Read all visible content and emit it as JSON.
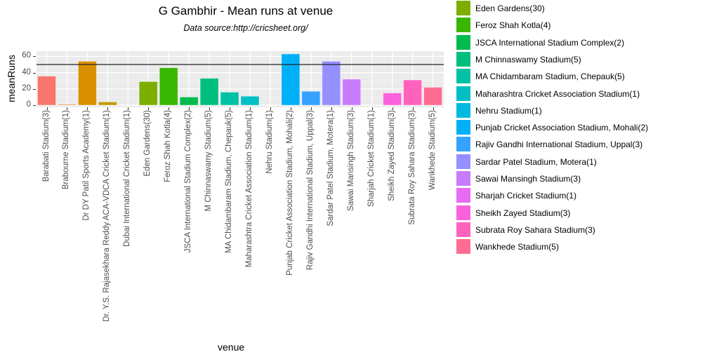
{
  "header": {
    "title": "G Gambhir - Mean runs at venue",
    "subtitle": "Data source:http://cricsheet.org/"
  },
  "axes": {
    "xlabel": "venue",
    "ylabel": "meanRuns",
    "yticks": [
      "0",
      "20",
      "40",
      "60"
    ]
  },
  "chart_data": {
    "type": "bar",
    "title": "G Gambhir - Mean runs at venue",
    "subtitle": "Data source:http://cricsheet.org/",
    "xlabel": "venue",
    "ylabel": "meanRuns",
    "ylim": [
      0,
      64
    ],
    "yticks": [
      0,
      20,
      40,
      60
    ],
    "grid": true,
    "hline": 50,
    "legend_position": "right",
    "categories": [
      "Barabati Stadium(3)",
      "Brabourne Stadium(1)",
      "Dr DY Patil Sports Academy(1)",
      "Dr. Y.S. Rajasekhara Reddy ACA-VDCA Cricket Stadium(1)",
      "Dubai International Cricket Stadium(1)",
      "Eden Gardens(30)",
      "Feroz Shah Kotla(4)",
      "JSCA International Stadium Complex(2)",
      "M Chinnaswamy Stadium(5)",
      "MA Chidambaram Stadium, Chepauk(5)",
      "Maharashtra Cricket Association Stadium(1)",
      "Nehru Stadium(1)",
      "Punjab Cricket Association Stadium, Mohali(2)",
      "Rajiv Gandhi International Stadium, Uppal(3)",
      "Sardar Patel Stadium, Motera(1)",
      "Sawai Mansingh Stadium(3)",
      "Sharjah Cricket Stadium(1)",
      "Sheikh Zayed Stadium(3)",
      "Subrata Roy Sahara Stadium(3)",
      "Wankhede Stadium(5)"
    ],
    "values": [
      35.7,
      1,
      54,
      4,
      0,
      29,
      46,
      10,
      33,
      16,
      11,
      0,
      63,
      17,
      54,
      32,
      0,
      15,
      31,
      22
    ],
    "colors": [
      "#F8766D",
      "#EA8331",
      "#D89000",
      "#C09B00",
      "#A3A500",
      "#7CAE00",
      "#39B600",
      "#00BB4E",
      "#00BF7D",
      "#00C1A3",
      "#00BFC4",
      "#00BAE0",
      "#00B0F6",
      "#35A2FF",
      "#9590FF",
      "#C77CFF",
      "#E76BF3",
      "#FA62DB",
      "#FF62BC",
      "#FF6C91"
    ]
  },
  "legend": {
    "items": [
      {
        "label": "Eden Gardens(30)",
        "color": "#7CAE00"
      },
      {
        "label": "Feroz Shah Kotla(4)",
        "color": "#39B600"
      },
      {
        "label": "JSCA International Stadium Complex(2)",
        "color": "#00BB4E"
      },
      {
        "label": "M Chinnaswamy Stadium(5)",
        "color": "#00BF7D"
      },
      {
        "label": "MA Chidambaram Stadium, Chepauk(5)",
        "color": "#00C1A3"
      },
      {
        "label": "Maharashtra Cricket Association Stadium(1)",
        "color": "#00BFC4"
      },
      {
        "label": "Nehru Stadium(1)",
        "color": "#00BAE0"
      },
      {
        "label": "Punjab Cricket Association Stadium, Mohali(2)",
        "color": "#00B0F6"
      },
      {
        "label": "Rajiv Gandhi International Stadium, Uppal(3)",
        "color": "#35A2FF"
      },
      {
        "label": "Sardar Patel Stadium, Motera(1)",
        "color": "#9590FF"
      },
      {
        "label": "Sawai Mansingh Stadium(3)",
        "color": "#C77CFF"
      },
      {
        "label": "Sharjah Cricket Stadium(1)",
        "color": "#E76BF3"
      },
      {
        "label": "Sheikh Zayed Stadium(3)",
        "color": "#FA62DB"
      },
      {
        "label": "Subrata Roy Sahara Stadium(3)",
        "color": "#FF62BC"
      },
      {
        "label": "Wankhede Stadium(5)",
        "color": "#FF6C91"
      }
    ]
  }
}
